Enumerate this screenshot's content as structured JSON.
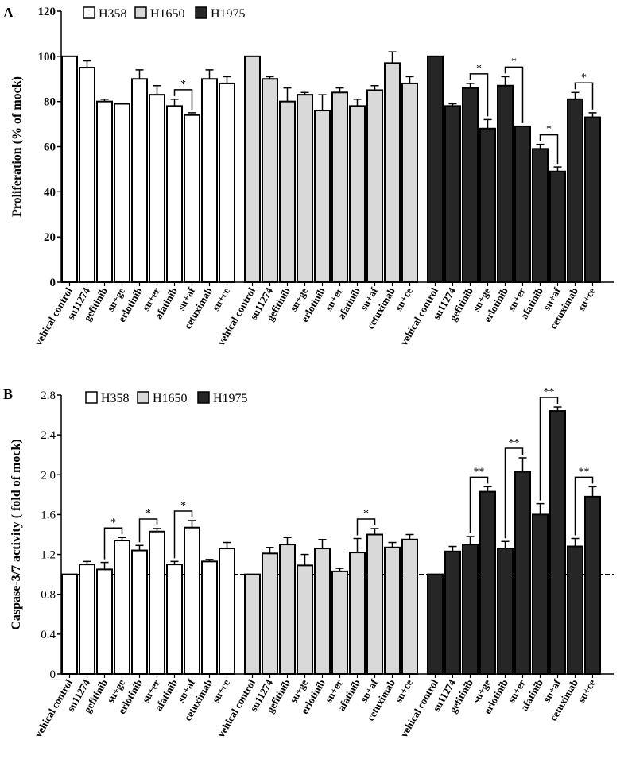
{
  "chart_data": [
    {
      "type": "bar",
      "panel_label": "A",
      "title": "",
      "ylabel": "Proliferation (% of mock)",
      "ylim": [
        0,
        120
      ],
      "yticks": [
        "0",
        "20",
        "40",
        "60",
        "80",
        "100",
        "120"
      ],
      "ytick_values": [
        0,
        20,
        40,
        60,
        80,
        100,
        120
      ],
      "categories": [
        "vehical control",
        "su11274",
        "gefitinib",
        "su+ge",
        "erlotinib",
        "su+er",
        "afatinib",
        "su+af",
        "cetuximab",
        "su+ce"
      ],
      "legend": [
        "H358",
        "H1650",
        "H1975"
      ],
      "legend_position": "top-left",
      "reference_line": null,
      "series": [
        {
          "name": "H358",
          "color": "#ffffff",
          "values": [
            100,
            95,
            80,
            79,
            90,
            83,
            78,
            74,
            90,
            88
          ],
          "errors": [
            0,
            3,
            1,
            0,
            4,
            4,
            3,
            1,
            4,
            3
          ],
          "significance": [
            {
              "pair": [
                6,
                7
              ],
              "label": "*"
            }
          ]
        },
        {
          "name": "H1650",
          "color": "#d9d9d9",
          "values": [
            100,
            90,
            80,
            83,
            76,
            84,
            78,
            85,
            97,
            88
          ],
          "errors": [
            0,
            1,
            6,
            1,
            7,
            2,
            3,
            2,
            5,
            3
          ],
          "significance": []
        },
        {
          "name": "H1975",
          "color": "#262626",
          "values": [
            100,
            78,
            86,
            68,
            87,
            69,
            59,
            49,
            81,
            73
          ],
          "errors": [
            0,
            1,
            2,
            4,
            4,
            0,
            2,
            2,
            3,
            2
          ],
          "significance": [
            {
              "pair": [
                2,
                3
              ],
              "label": "*"
            },
            {
              "pair": [
                4,
                5
              ],
              "label": "*"
            },
            {
              "pair": [
                6,
                7
              ],
              "label": "*"
            },
            {
              "pair": [
                8,
                9
              ],
              "label": "*"
            }
          ]
        }
      ]
    },
    {
      "type": "bar",
      "panel_label": "B",
      "title": "",
      "ylabel": "Caspase-3/7 activity ( fold of mock)",
      "ylim": [
        0,
        2.8
      ],
      "yticks": [
        "0",
        "0.4",
        "0.8",
        "1.2",
        "1.6",
        "2.0",
        "2.4",
        "2.8"
      ],
      "ytick_values": [
        0,
        0.4,
        0.8,
        1.2,
        1.6,
        2.0,
        2.4,
        2.8
      ],
      "categories": [
        "vehical control",
        "su11274",
        "gefitinib",
        "su+ge",
        "erlotinib",
        "su+er",
        "afatinib",
        "su+af",
        "cetuximab",
        "su+ce"
      ],
      "legend": [
        "H358",
        "H1650",
        "H1975"
      ],
      "legend_position": "top-left",
      "reference_line": 1.0,
      "series": [
        {
          "name": "H358",
          "color": "#ffffff",
          "values": [
            1.0,
            1.1,
            1.05,
            1.34,
            1.24,
            1.43,
            1.1,
            1.47,
            1.13,
            1.26
          ],
          "errors": [
            0,
            0.03,
            0.07,
            0.03,
            0.05,
            0.03,
            0.03,
            0.07,
            0.02,
            0.06
          ],
          "significance": [
            {
              "pair": [
                2,
                3
              ],
              "label": "*"
            },
            {
              "pair": [
                4,
                5
              ],
              "label": "*"
            },
            {
              "pair": [
                6,
                7
              ],
              "label": "*"
            }
          ]
        },
        {
          "name": "H1650",
          "color": "#d9d9d9",
          "values": [
            1.0,
            1.21,
            1.3,
            1.09,
            1.26,
            1.03,
            1.22,
            1.4,
            1.27,
            1.35
          ],
          "errors": [
            0,
            0.06,
            0.07,
            0.11,
            0.09,
            0.03,
            0.14,
            0.06,
            0.05,
            0.05
          ],
          "significance": [
            {
              "pair": [
                6,
                7
              ],
              "label": "*"
            }
          ]
        },
        {
          "name": "H1975",
          "color": "#262626",
          "values": [
            1.0,
            1.23,
            1.3,
            1.83,
            1.26,
            2.03,
            1.6,
            2.64,
            1.28,
            1.78
          ],
          "errors": [
            0,
            0.05,
            0.08,
            0.05,
            0.07,
            0.14,
            0.11,
            0.04,
            0.08,
            0.1
          ],
          "significance": [
            {
              "pair": [
                2,
                3
              ],
              "label": "**"
            },
            {
              "pair": [
                4,
                5
              ],
              "label": "**"
            },
            {
              "pair": [
                6,
                7
              ],
              "label": "**"
            },
            {
              "pair": [
                8,
                9
              ],
              "label": "**"
            }
          ]
        }
      ]
    }
  ]
}
